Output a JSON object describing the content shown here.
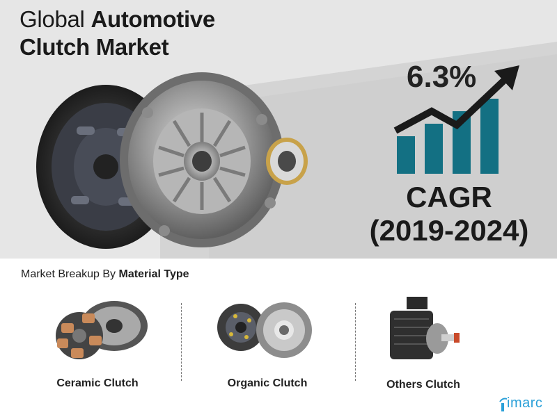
{
  "header": {
    "title_light": "Global ",
    "title_bold_line1": "Automotive",
    "title_bold_line2": "Clutch Market"
  },
  "hero_image": {
    "icon": "automotive-clutch-kit-image"
  },
  "cagr": {
    "value": "6.3%",
    "label": "CAGR",
    "period": "(2019-2024)",
    "bar_color": "#137083",
    "arrow_color": "#1a1a1a",
    "bar_levels": [
      0.45,
      0.6,
      0.75,
      0.9
    ]
  },
  "breakup": {
    "heading_prefix": "Market Breakup By ",
    "heading_bold": "Material Type",
    "items": [
      {
        "label": "Ceramic Clutch",
        "icon": "ceramic-clutch-image"
      },
      {
        "label": "Organic Clutch",
        "icon": "organic-clutch-image"
      },
      {
        "label": "Others Clutch",
        "icon": "others-clutch-image"
      }
    ]
  },
  "brand": {
    "logo_text": "imarc",
    "color": "#2aa0d8"
  }
}
